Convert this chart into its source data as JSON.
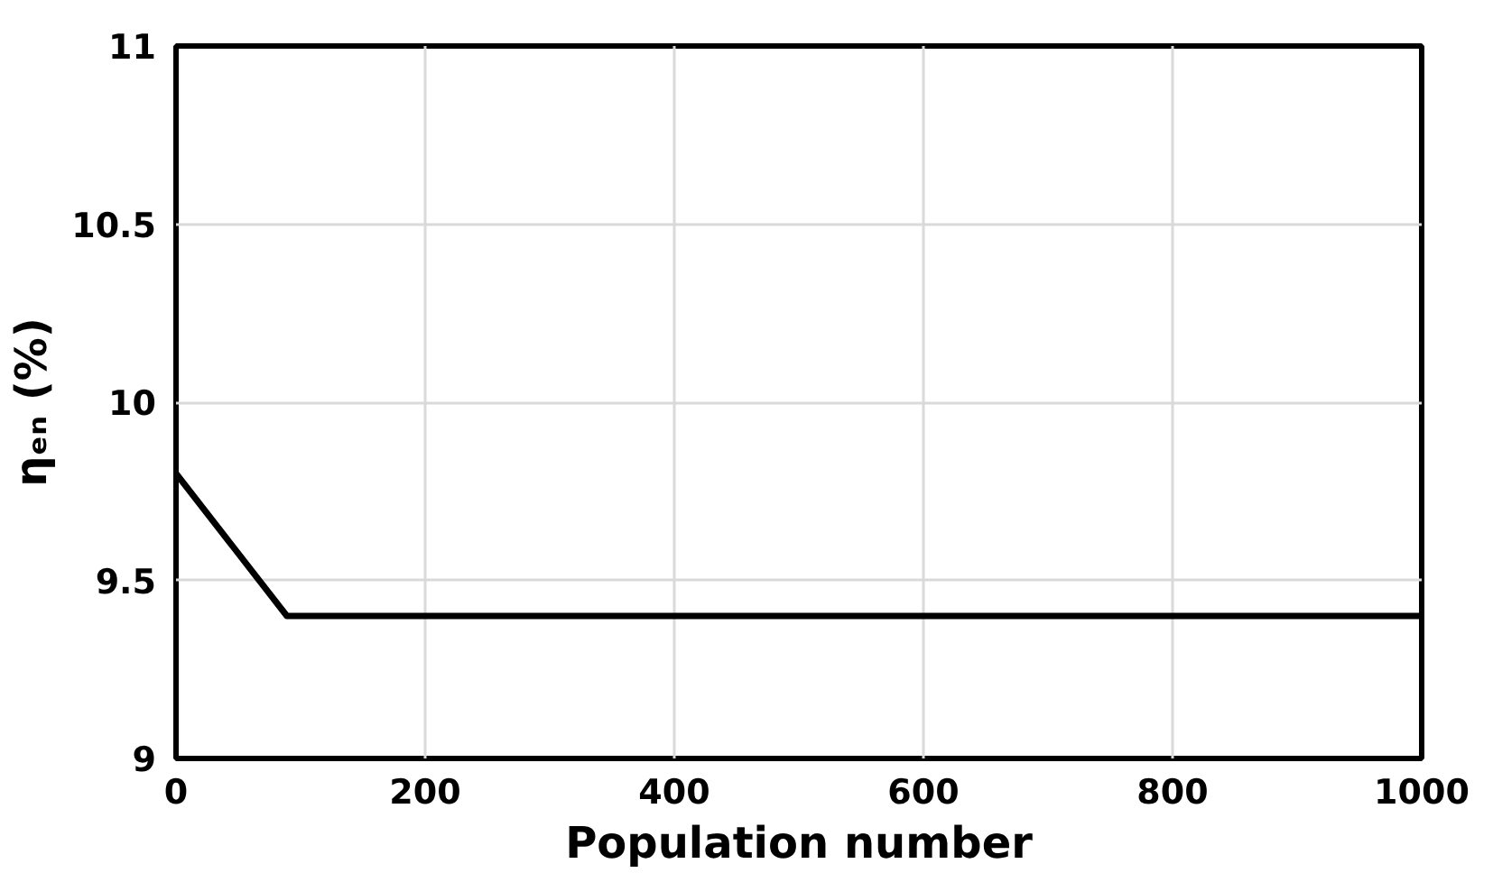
{
  "chart_data": {
    "type": "line",
    "xlabel": "Population number",
    "ylabel": "ηₑₙ (%)",
    "x": [
      0,
      89,
      1000
    ],
    "series": [
      {
        "color": "#000000",
        "values": [
          9.8,
          9.4,
          9.4
        ]
      }
    ],
    "xlim": [
      0,
      1000
    ],
    "xticks": [
      0,
      200,
      400,
      600,
      800,
      1000
    ],
    "ylim": [
      9,
      11
    ],
    "yticks": [
      9,
      9.5,
      10,
      10.5,
      11
    ],
    "grid": true,
    "marker": "none",
    "line_style": "solid"
  }
}
